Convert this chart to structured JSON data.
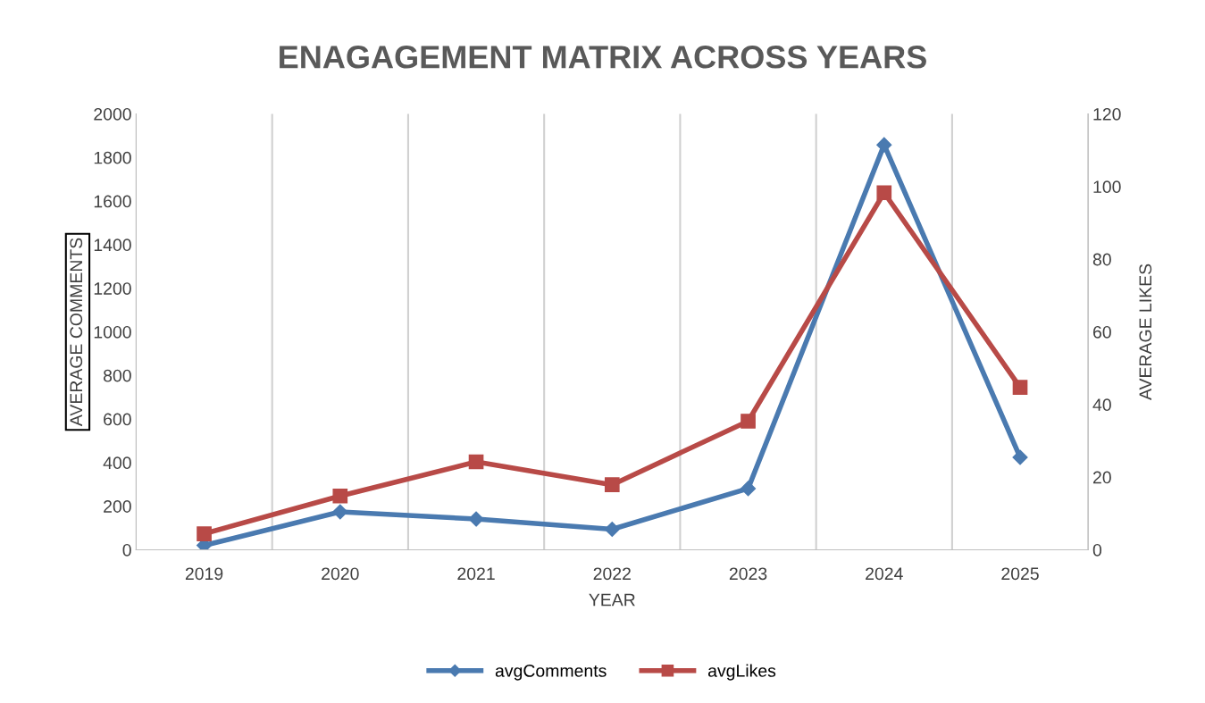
{
  "chart_data": {
    "type": "line",
    "title": "ENAGAGEMENT MATRIX ACROSS YEARS",
    "xlabel": "YEAR",
    "ylabel": "AVERAGE COMMENTS",
    "y2label": "AVERAGE LIKES",
    "categories": [
      "2019",
      "2020",
      "2021",
      "2022",
      "2023",
      "2024",
      "2025"
    ],
    "series": [
      {
        "name": "avgComments",
        "color": "#4a7ab0",
        "marker": "diamond",
        "values": [
          20,
          174,
          141,
          94,
          281,
          1858,
          424
        ]
      },
      {
        "name": "avgLikes",
        "color": "#b84a47",
        "marker": "square",
        "axis": "y2",
        "values": [
          4.4,
          14.8,
          24.2,
          17.9,
          35.4,
          98.3,
          44.7
        ]
      }
    ],
    "ylim": [
      0,
      2000
    ],
    "yticks": [
      0,
      200,
      400,
      600,
      800,
      1000,
      1200,
      1400,
      1600,
      1800,
      2000
    ],
    "y2lim": [
      0,
      120
    ],
    "y2ticks": [
      0,
      20,
      40,
      60,
      80,
      100,
      120
    ],
    "grid": "x",
    "legend": "bottom",
    "line_style": "solid"
  }
}
